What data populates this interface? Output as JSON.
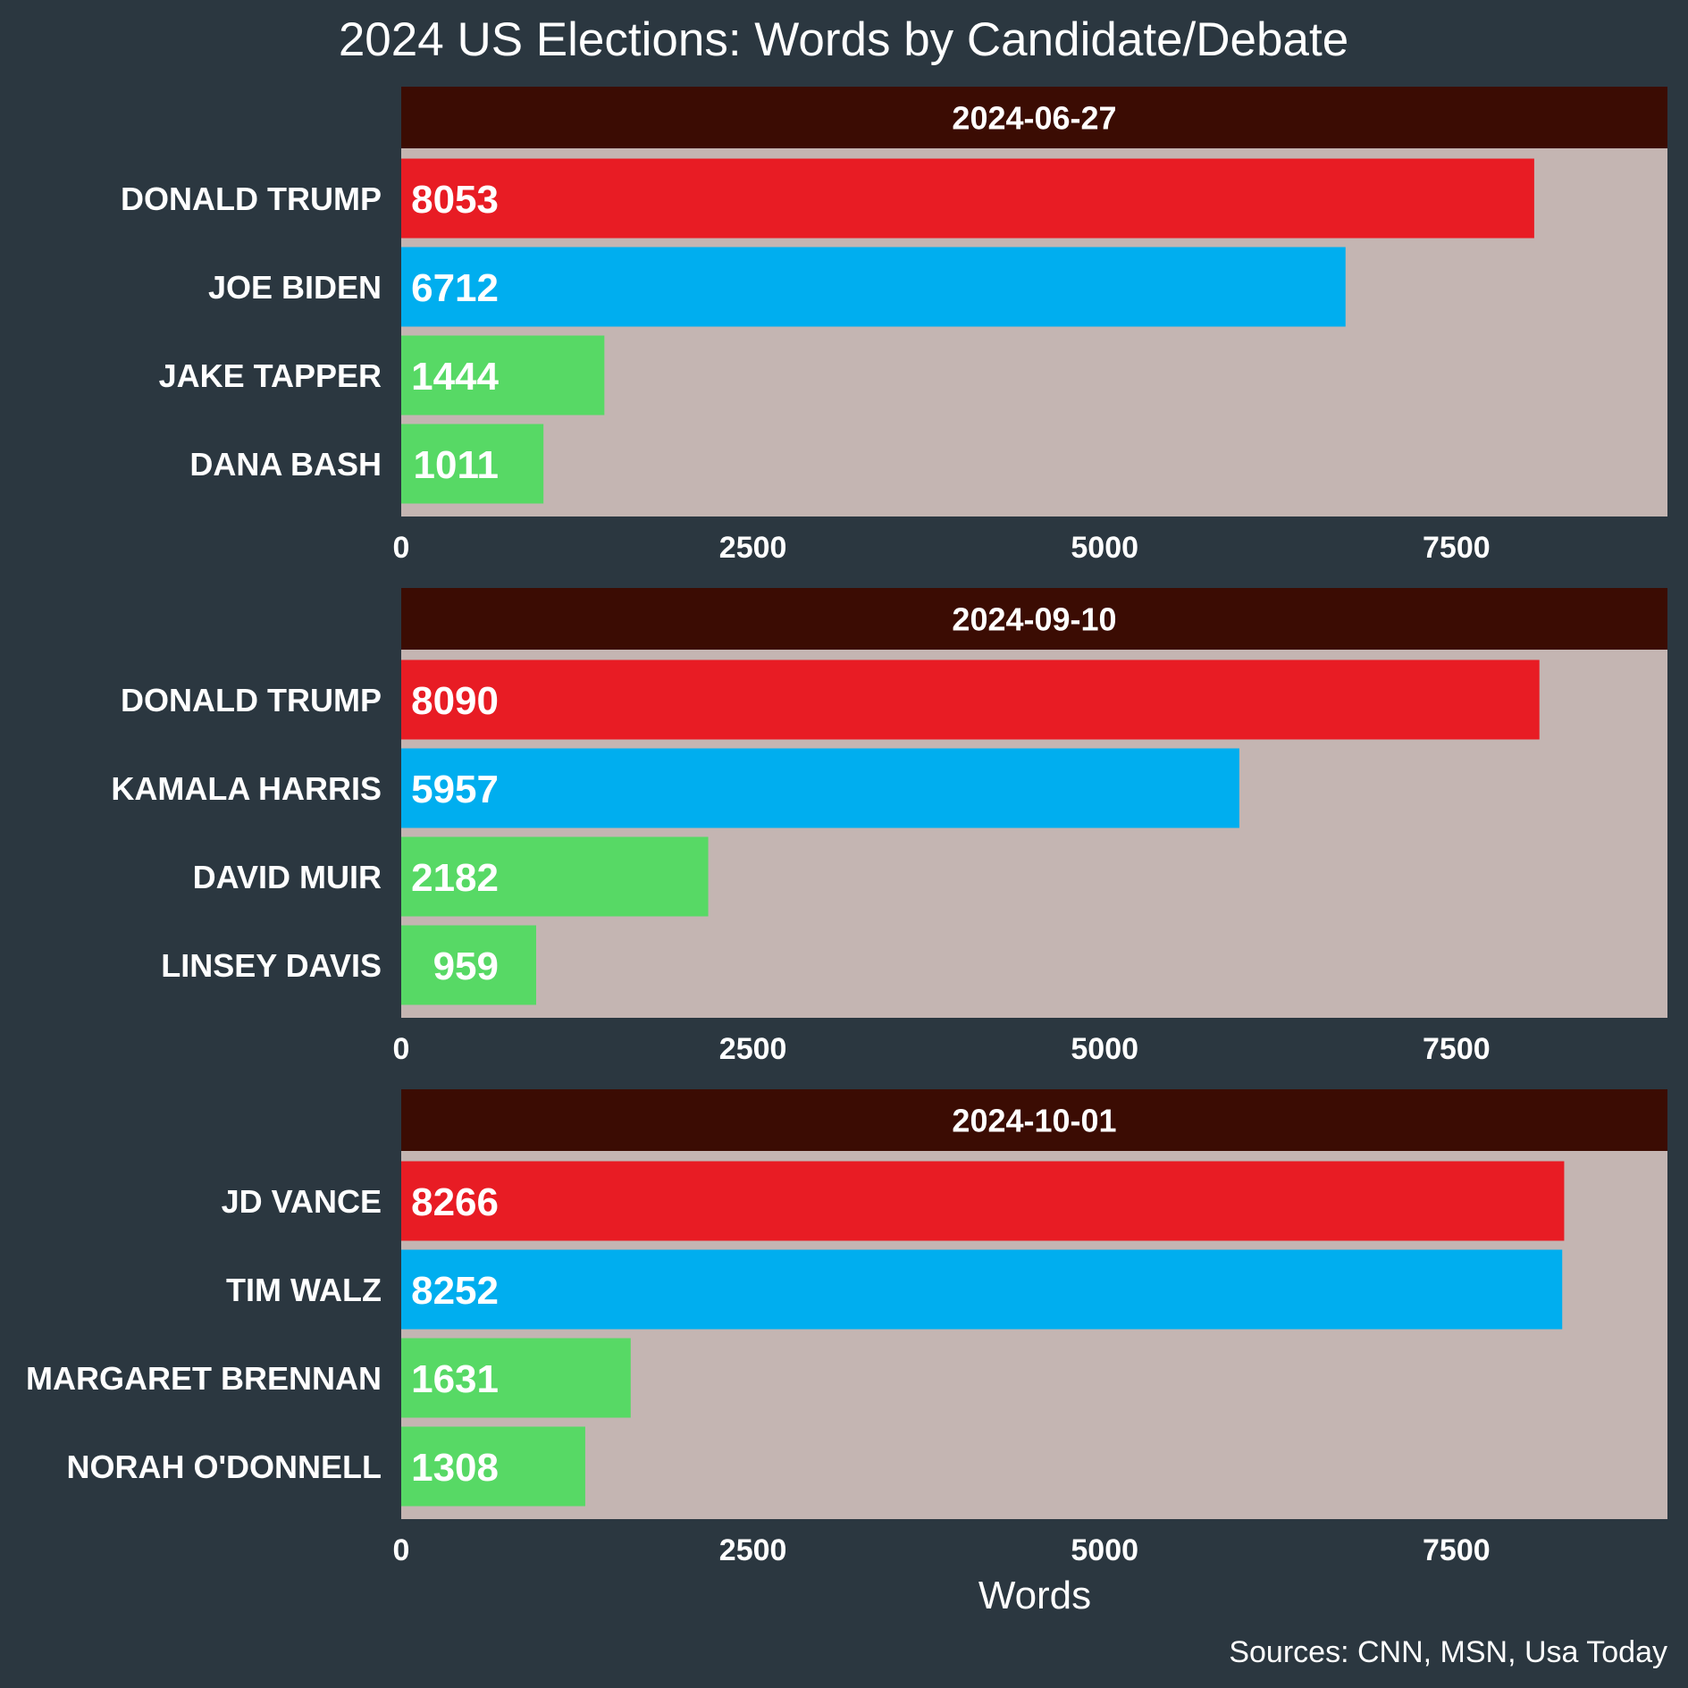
{
  "title": "2024 US Elections: Words by Candidate/Debate",
  "caption": "Sources: CNN, MSN, Usa Today",
  "colors": {
    "background": "#2b3740",
    "panel": "#c4b5b2",
    "strip": "#3b0c03",
    "republican": "#e81c24",
    "democrat": "#00aeef",
    "moderator": "#57d965"
  },
  "chart_data": {
    "type": "bar",
    "orientation": "horizontal",
    "xlabel": "Words",
    "xlim": [
      0,
      9000
    ],
    "xticks": [
      0,
      2500,
      5000,
      7500
    ],
    "facets": [
      {
        "label": "2024-06-27",
        "bars": [
          {
            "name": "DONALD TRUMP",
            "value": 8053,
            "role": "republican"
          },
          {
            "name": "JOE BIDEN",
            "value": 6712,
            "role": "democrat"
          },
          {
            "name": "JAKE TAPPER",
            "value": 1444,
            "role": "moderator"
          },
          {
            "name": "DANA BASH",
            "value": 1011,
            "role": "moderator"
          }
        ]
      },
      {
        "label": "2024-09-10",
        "bars": [
          {
            "name": "DONALD TRUMP",
            "value": 8090,
            "role": "republican"
          },
          {
            "name": "KAMALA HARRIS",
            "value": 5957,
            "role": "democrat"
          },
          {
            "name": "DAVID MUIR",
            "value": 2182,
            "role": "moderator"
          },
          {
            "name": "LINSEY DAVIS",
            "value": 959,
            "role": "moderator"
          }
        ]
      },
      {
        "label": "2024-10-01",
        "bars": [
          {
            "name": "JD VANCE",
            "value": 8266,
            "role": "republican"
          },
          {
            "name": "TIM WALZ",
            "value": 8252,
            "role": "democrat"
          },
          {
            "name": "MARGARET BRENNAN",
            "value": 1631,
            "role": "moderator"
          },
          {
            "name": "NORAH O'DONNELL",
            "value": 1308,
            "role": "moderator"
          }
        ]
      }
    ]
  }
}
